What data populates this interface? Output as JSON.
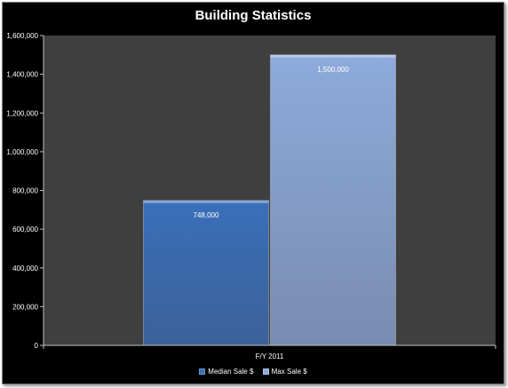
{
  "chart_data": {
    "type": "bar",
    "title": "Building Statistics",
    "categories": [
      "F/Y 2011"
    ],
    "series": [
      {
        "name": "Median Sale $",
        "values": [
          748000
        ],
        "data_labels": [
          "748,000"
        ],
        "color": "#3a6fba"
      },
      {
        "name": "Max Sale $",
        "values": [
          1500000
        ],
        "data_labels": [
          "1,500,000"
        ],
        "color": "#8eaadc"
      }
    ],
    "xlabel": "",
    "ylabel": "",
    "ylim": [
      0,
      1600000
    ],
    "yticks": [
      0,
      200000,
      400000,
      600000,
      800000,
      1000000,
      1200000,
      1400000,
      1600000
    ],
    "ytick_labels": [
      "0",
      "200,000",
      "400,000",
      "600,000",
      "800,000",
      "1,000,000",
      "1,200,000",
      "1,400,000",
      "1,600,000"
    ],
    "grid": false,
    "legend_position": "bottom",
    "plot_background": "#3f3f3f",
    "chart_background": "#000000"
  }
}
